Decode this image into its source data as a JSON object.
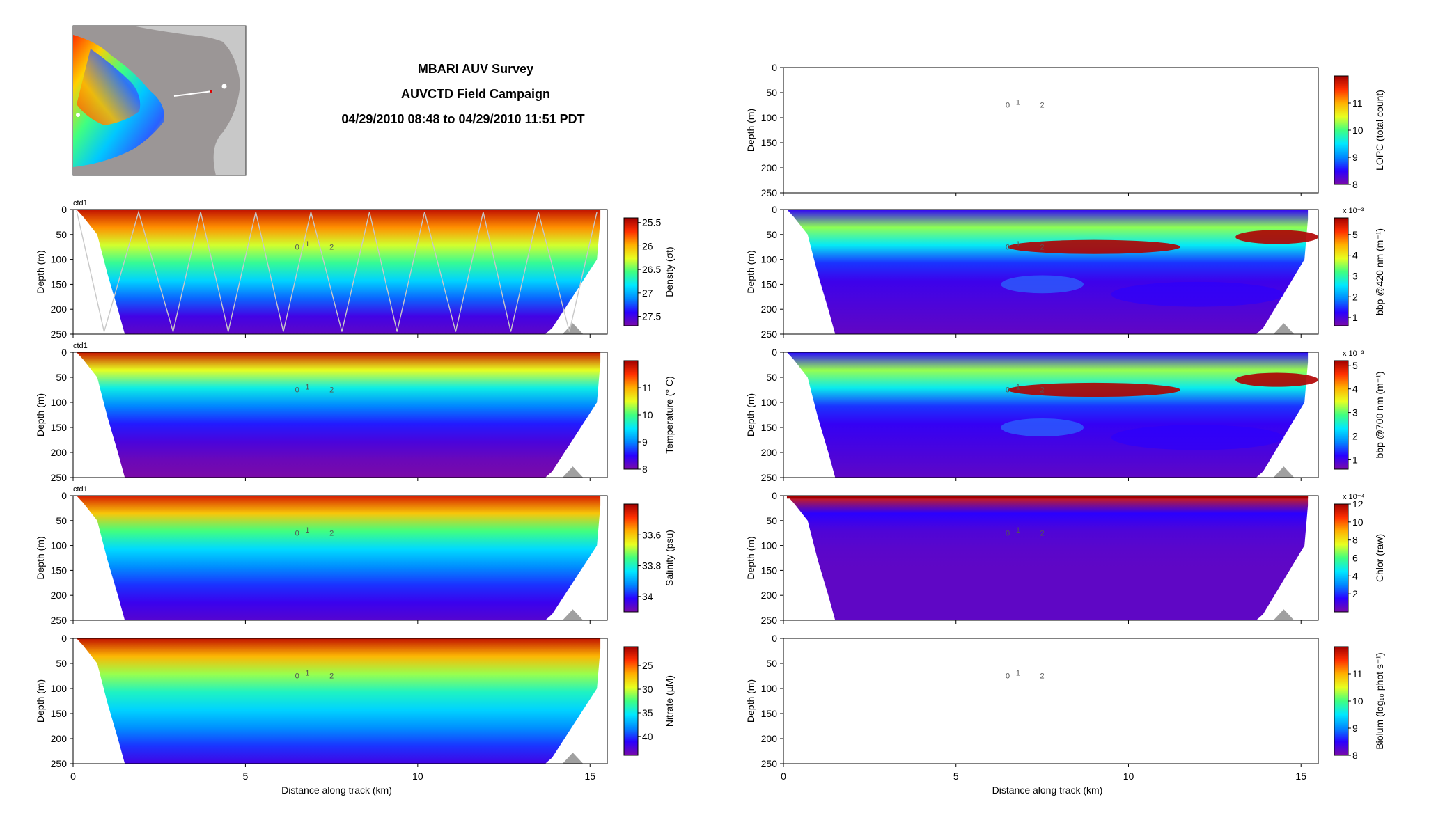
{
  "header": {
    "title": "MBARI AUV Survey",
    "subtitle": "AUVCTD Field Campaign",
    "time_range": "04/29/2010 08:48 to 04/29/2010 11:51 PDT"
  },
  "common": {
    "xlabel": "Distance along track (km)",
    "ylabel": "Depth (m)",
    "x_ticks": [
      "0",
      "5",
      "10",
      "15"
    ],
    "y_ticks": [
      "0",
      "50",
      "100",
      "150",
      "200",
      "250"
    ],
    "xlim": [
      0,
      15.5
    ],
    "ylim": [
      250,
      0
    ],
    "track_markers": [
      "0",
      "1",
      "2"
    ],
    "ctd_label": "ctd1"
  },
  "chart_data": [
    {
      "type": "heatmap",
      "id": "density",
      "column": "left",
      "row": 0,
      "ylabel": "Depth (m)",
      "colorbar_label": "Density (σt)",
      "colorbar_ticks": [
        "25.5",
        "26",
        "26.5",
        "27",
        "27.5"
      ],
      "colorbar_range": [
        25.4,
        27.7
      ],
      "reversed": true,
      "has_ctd_label": true,
      "yo_track": true,
      "data_extent_km": [
        0.1,
        15.3
      ],
      "profile": [
        25.5,
        25.9,
        26.3,
        26.6,
        26.9,
        27.2,
        27.5,
        27.6
      ]
    },
    {
      "type": "heatmap",
      "id": "temperature",
      "column": "left",
      "row": 1,
      "ylabel": "Depth (m)",
      "colorbar_label": "Temperature (° C)",
      "colorbar_ticks": [
        "11",
        "10",
        "9",
        "8"
      ],
      "colorbar_range": [
        8,
        12
      ],
      "reversed": false,
      "has_ctd_label": true,
      "data_extent_km": [
        0.1,
        15.3
      ],
      "profile": [
        11.8,
        10.5,
        9.6,
        9.0,
        8.6,
        8.3,
        8.1,
        8.0
      ]
    },
    {
      "type": "heatmap",
      "id": "salinity",
      "column": "left",
      "row": 2,
      "ylabel": "Depth (m)",
      "colorbar_label": "Salinity (psu)",
      "colorbar_ticks": [
        "33.6",
        "33.8",
        "34"
      ],
      "colorbar_range": [
        33.4,
        34.1
      ],
      "reversed": true,
      "has_ctd_label": true,
      "data_extent_km": [
        0.1,
        15.3
      ],
      "profile": [
        33.45,
        33.6,
        33.75,
        33.85,
        33.92,
        33.98,
        34.03,
        34.06
      ]
    },
    {
      "type": "heatmap",
      "id": "nitrate",
      "column": "left",
      "row": 3,
      "ylabel": "Depth (m)",
      "colorbar_label": "Nitrate (µM)",
      "colorbar_ticks": [
        "25",
        "30",
        "35",
        "40"
      ],
      "colorbar_range": [
        21,
        44
      ],
      "reversed": true,
      "has_ctd_label": false,
      "data_extent_km": [
        0.1,
        15.3
      ],
      "profile": [
        22,
        27,
        31,
        34,
        36,
        38,
        40,
        42
      ]
    },
    {
      "type": "heatmap",
      "id": "lopc",
      "column": "right",
      "row": 0,
      "ylabel": "Depth (m)",
      "colorbar_label": "LOPC (total count)",
      "colorbar_ticks": [
        "11",
        "10",
        "9",
        "8"
      ],
      "colorbar_range": [
        8,
        12
      ],
      "reversed": false,
      "empty": true
    },
    {
      "type": "heatmap",
      "id": "bbp420",
      "column": "right",
      "row": 1,
      "ylabel": "Depth (m)",
      "colorbar_label": "bbp @420 nm (m⁻¹)",
      "colorbar_ticks": [
        "5",
        "4",
        "3",
        "2",
        "1"
      ],
      "colorbar_exponent": "x 10⁻³",
      "colorbar_range": [
        0.6,
        5.8
      ],
      "reversed": false,
      "data_extent_km": [
        0.1,
        15.2
      ],
      "profile": [
        1.2,
        3.5,
        2.6,
        1.5,
        1.1,
        1.0,
        0.9,
        0.8
      ]
    },
    {
      "type": "heatmap",
      "id": "bbp700",
      "column": "right",
      "row": 2,
      "ylabel": "Depth (m)",
      "colorbar_label": "bbp @700 nm (m⁻¹)",
      "colorbar_ticks": [
        "5",
        "4",
        "3",
        "2",
        "1"
      ],
      "colorbar_exponent": "x 10⁻³",
      "colorbar_range": [
        0.6,
        5.2
      ],
      "reversed": false,
      "data_extent_km": [
        0.1,
        15.2
      ],
      "profile": [
        1.2,
        3.2,
        2.4,
        1.4,
        1.1,
        1.0,
        0.9,
        0.8
      ]
    },
    {
      "type": "heatmap",
      "id": "chlor",
      "column": "right",
      "row": 3,
      "ylabel": "Depth (m)",
      "colorbar_label": "Chlor (raw)",
      "colorbar_ticks": [
        "12",
        "10",
        "8",
        "6",
        "4",
        "2"
      ],
      "colorbar_exponent": "x 10⁻⁴",
      "colorbar_range": [
        0,
        12
      ],
      "reversed": false,
      "data_extent_km": [
        0.1,
        15.2
      ],
      "profile": [
        11,
        1.5,
        0.8,
        0.6,
        0.5,
        0.5,
        0.5,
        0.5
      ]
    },
    {
      "type": "heatmap",
      "id": "biolum",
      "column": "right",
      "row": 4,
      "ylabel": "Depth (m)",
      "colorbar_label": "Biolum (log₁₀ phot s⁻¹)",
      "colorbar_ticks": [
        "11",
        "10",
        "9",
        "8"
      ],
      "colorbar_range": [
        8,
        12
      ],
      "reversed": false,
      "empty": true
    }
  ],
  "colors": {
    "jet": [
      "#7a0aa8",
      "#2a00ff",
      "#0088ff",
      "#00e8ff",
      "#40ff80",
      "#e8ff20",
      "#ffb000",
      "#ff3000",
      "#a00000"
    ],
    "track": "#c8c8c8",
    "seamount": "#a0a0a0",
    "map_land": "#b0b0b0"
  }
}
